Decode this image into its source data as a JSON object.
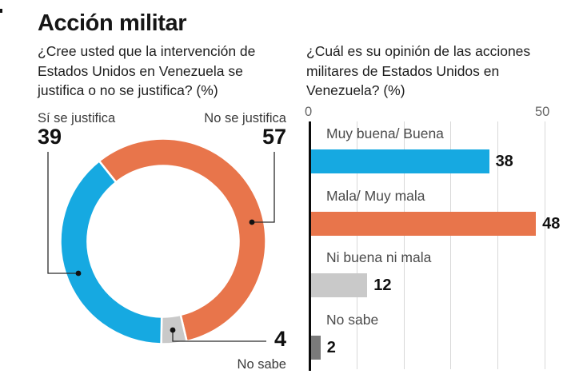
{
  "title": "Acción militar",
  "palette": {
    "blue": "#16A9E1",
    "orange": "#E8754B",
    "light_gray": "#C9C9C9",
    "dark_gray": "#7A7A7A",
    "gridline": "#d8d8d8",
    "axis": "#0c0c0c"
  },
  "chart_data": [
    {
      "type": "pie",
      "subtype": "donut",
      "question": "¿Cree usted que la intervención de Estados Unidos en Venezuela se justifica o no se justifica? (%)",
      "segments": [
        {
          "label": "Sí se justifica",
          "value": 39,
          "color": "#16A9E1"
        },
        {
          "label": "No se justifica",
          "value": 57,
          "color": "#E8754B"
        },
        {
          "label": "No sabe",
          "value": 4,
          "color": "#C9C9C9"
        }
      ],
      "clockwise_order_from_top": [
        "No se justifica",
        "No sabe",
        "Sí se justifica"
      ],
      "start_angle_deg_cw_from_top": -38.5,
      "legend_position": "callout-labels"
    },
    {
      "type": "bar",
      "orientation": "horizontal",
      "question": "¿Cuál es su opinión de las acciones militares de Estados Unidos en Venezuela? (%)",
      "categories": [
        "Muy buena/ Buena",
        "Mala/ Muy mala",
        "Ni buena ni mala",
        "No sabe"
      ],
      "values": [
        38,
        48,
        12,
        2
      ],
      "colors": [
        "#16A9E1",
        "#E8754B",
        "#C9C9C9",
        "#7A7A7A"
      ],
      "xlim": [
        0,
        58.5
      ],
      "ticks": [
        0,
        50
      ],
      "grid_interval": 10,
      "grid": "on",
      "value_labels": "end-of-bar"
    }
  ]
}
